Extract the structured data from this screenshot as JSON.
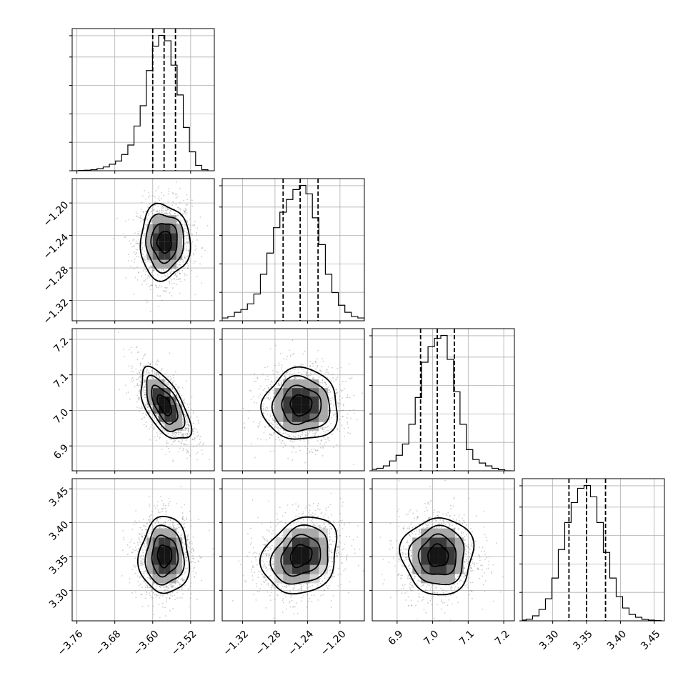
{
  "chart_data": {
    "type": "corner",
    "grid": true,
    "quantiles": [
      0.16,
      0.5,
      0.84
    ],
    "parameters": [
      {
        "mean": -3.575,
        "sd": 0.025,
        "range": [
          -3.77,
          -3.47
        ],
        "ticks": [
          -3.76,
          -3.68,
          -3.6,
          -3.52
        ],
        "tick_labels": [
          "−3.76",
          "−3.68",
          "−3.60",
          "−3.52"
        ],
        "quantile_values": [
          -3.6,
          -3.576,
          -3.552
        ],
        "hist_x": [
          -3.763,
          -3.75,
          -3.737,
          -3.724,
          -3.711,
          -3.698,
          -3.685,
          -3.672,
          -3.659,
          -3.646,
          -3.633,
          -3.62,
          -3.607,
          -3.594,
          -3.581,
          -3.568,
          -3.555,
          -3.542,
          -3.529,
          -3.516,
          -3.503,
          -3.49
        ],
        "hist_counts": [
          0,
          2,
          4,
          8,
          15,
          28,
          48,
          72,
          120,
          190,
          330,
          480,
          740,
          920,
          1000,
          960,
          780,
          560,
          320,
          140,
          40,
          8
        ]
      },
      {
        "mean": -1.248,
        "sd": 0.022,
        "range": [
          -1.345,
          -1.17
        ],
        "ticks": [
          -1.32,
          -1.28,
          -1.24,
          -1.2
        ],
        "tick_labels": [
          "−1.32",
          "−1.28",
          "−1.24",
          "−1.20"
        ],
        "quantile_values": [
          -1.27,
          -1.249,
          -1.227
        ],
        "hist_x": [
          -1.342,
          -1.334,
          -1.326,
          -1.318,
          -1.31,
          -1.302,
          -1.294,
          -1.286,
          -1.278,
          -1.27,
          -1.262,
          -1.254,
          -1.246,
          -1.238,
          -1.23,
          -1.222,
          -1.214,
          -1.206,
          -1.198,
          -1.19,
          -1.182,
          -1.174
        ],
        "hist_counts": [
          20,
          30,
          60,
          80,
          120,
          190,
          330,
          480,
          660,
          770,
          860,
          930,
          960,
          900,
          730,
          540,
          330,
          200,
          110,
          60,
          30,
          20
        ]
      },
      {
        "mean": 7.015,
        "sd": 0.048,
        "range": [
          6.83,
          7.23
        ],
        "ticks": [
          6.9,
          7.0,
          7.1,
          7.2
        ],
        "tick_labels": [
          "6.9",
          "7.0",
          "7.1",
          "7.2"
        ],
        "quantile_values": [
          6.966,
          7.013,
          7.061
        ],
        "hist_x": [
          6.834,
          6.852,
          6.87,
          6.888,
          6.906,
          6.924,
          6.942,
          6.96,
          6.978,
          6.996,
          7.014,
          7.032,
          7.05,
          7.068,
          7.086,
          7.104,
          7.122,
          7.14,
          7.158,
          7.176,
          7.194,
          7.212
        ],
        "hist_counts": [
          10,
          18,
          35,
          70,
          110,
          190,
          330,
          520,
          770,
          880,
          940,
          960,
          790,
          560,
          330,
          150,
          80,
          55,
          35,
          18,
          8,
          0
        ]
      },
      {
        "mean": 3.351,
        "sd": 0.027,
        "range": [
          3.255,
          3.465
        ],
        "ticks": [
          3.3,
          3.35,
          3.4,
          3.45
        ],
        "tick_labels": [
          "3.30",
          "3.35",
          "3.40",
          "3.45"
        ],
        "quantile_values": [
          3.324,
          3.35,
          3.378
        ],
        "hist_x": [
          3.256,
          3.2655,
          3.275,
          3.2845,
          3.294,
          3.3035,
          3.313,
          3.3225,
          3.332,
          3.3415,
          3.351,
          3.3605,
          3.37,
          3.3795,
          3.389,
          3.3985,
          3.408,
          3.4175,
          3.427,
          3.4365,
          3.446,
          3.4555
        ],
        "hist_counts": [
          5,
          12,
          35,
          80,
          155,
          300,
          500,
          690,
          830,
          930,
          950,
          870,
          690,
          480,
          300,
          170,
          90,
          45,
          25,
          10,
          5,
          2
        ]
      }
    ],
    "correlations": [
      [
        1,
        0,
        0,
        0
      ],
      [
        0,
        1,
        0,
        0
      ],
      [
        -0.6,
        0,
        1,
        0
      ],
      [
        0,
        0.2,
        0,
        1
      ]
    ]
  },
  "colors": {
    "line": "#000000",
    "grid": "#b0b0b0",
    "scatter": "#6f6f6f",
    "density_scale": [
      "#f4f4f4",
      "#d7d7d7",
      "#a9a9a9",
      "#6e6e6e",
      "#3a3a3a",
      "#151515"
    ]
  }
}
